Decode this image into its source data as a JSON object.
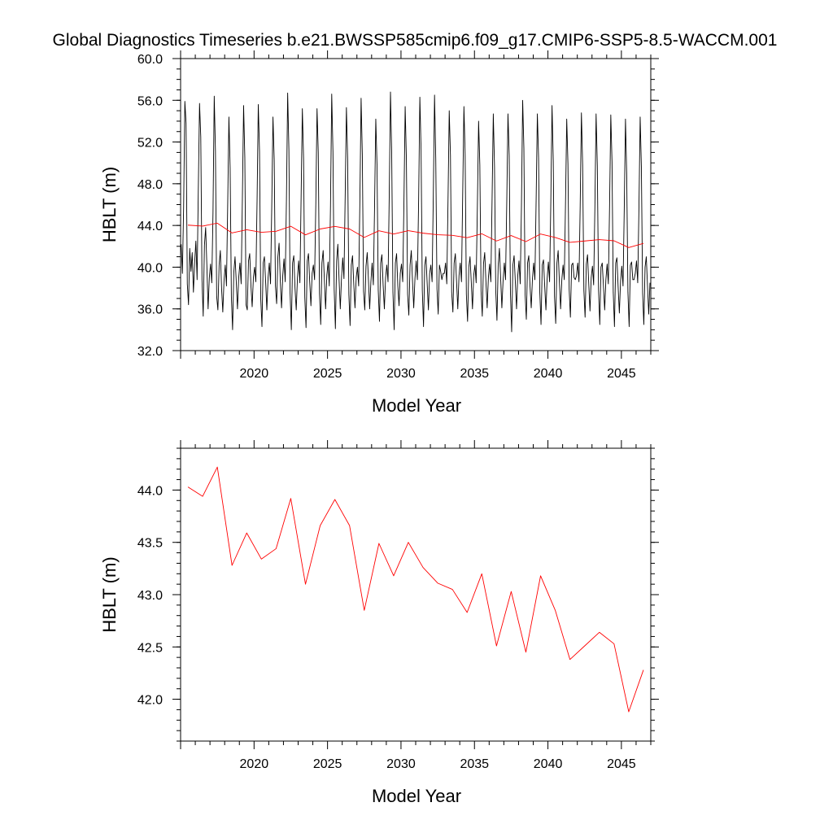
{
  "title": "Global Diagnostics Timeseries b.e21.BWSSP585cmip6.f09_g17.CMIP6-SSP5-8.5-WACCM.001",
  "chart_data": [
    {
      "type": "line",
      "xlabel": "Model Year",
      "ylabel": "HBLT (m)",
      "xlim": [
        2015,
        2047
      ],
      "ylim": [
        32,
        60
      ],
      "x_ticks": [
        "2020",
        "2025",
        "2030",
        "2035",
        "2040",
        "2045"
      ],
      "y_ticks": [
        "32.0",
        "36.0",
        "40.0",
        "44.0",
        "48.0",
        "52.0",
        "56.0",
        "60.0"
      ],
      "grid": false,
      "legend": "none",
      "series": [
        {
          "color": "#000000",
          "resolution": "monthly",
          "x_start": 2015.04,
          "x_step": 0.0833,
          "values": [
            42.2,
            39.4,
            45.8,
            55.9,
            53.8,
            38.4,
            36.4,
            41.8,
            39.6,
            41.4,
            37.6,
            40.4,
            42.5,
            38.8,
            47.5,
            55.7,
            52.5,
            38.8,
            35.3,
            42.1,
            43.8,
            40.1,
            36.0,
            39.0,
            40.3,
            38.5,
            45.2,
            56.4,
            51.1,
            37.2,
            35.9,
            40.2,
            41.6,
            38.0,
            35.7,
            38.7,
            40.2,
            38.2,
            46.0,
            54.4,
            49.5,
            37.2,
            34.0,
            39.5,
            41.0,
            38.6,
            36.0,
            39.0,
            40.4,
            38.4,
            46.5,
            55.5,
            50.5,
            36.4,
            35.9,
            40.6,
            41.3,
            38.2,
            36.2,
            39.0,
            40.0,
            38.6,
            46.3,
            55.6,
            51.1,
            37.0,
            34.3,
            40.4,
            41.0,
            38.6,
            35.9,
            39.0,
            40.4,
            38.4,
            45.8,
            54.4,
            50.3,
            38.2,
            36.5,
            41.0,
            42.3,
            38.6,
            36.1,
            39.2,
            40.8,
            38.6,
            46.5,
            56.7,
            51.3,
            37.5,
            34.0,
            40.4,
            41.1,
            38.0,
            35.9,
            39.0,
            40.6,
            38.5,
            46.8,
            55.2,
            50.4,
            37.1,
            34.2,
            40.6,
            41.3,
            38.6,
            36.3,
            39.4,
            40.2,
            38.8,
            46.1,
            55.2,
            51.0,
            37.5,
            34.5,
            40.4,
            41.6,
            38.8,
            36.0,
            39.2,
            40.5,
            38.2,
            45.9,
            56.6,
            51.1,
            37.9,
            34.1,
            40.6,
            42.2,
            38.8,
            36.0,
            39.0,
            40.9,
            38.9,
            46.9,
            55.3,
            50.4,
            37.4,
            34.4,
            40.2,
            41.1,
            38.4,
            36.1,
            39.0,
            40.0,
            38.2,
            46.4,
            56.2,
            50.8,
            37.7,
            35.9,
            40.1,
            41.4,
            38.8,
            36.0,
            38.6,
            40.4,
            38.3,
            45.8,
            54.2,
            49.8,
            37.8,
            34.8,
            40.4,
            41.2,
            38.3,
            36.0,
            39.0,
            40.2,
            38.6,
            47.0,
            56.8,
            50.9,
            37.6,
            34.0,
            40.4,
            41.3,
            38.2,
            36.3,
            39.4,
            40.3,
            38.6,
            46.2,
            55.4,
            50.3,
            37.4,
            35.4,
            40.2,
            41.6,
            38.7,
            36.1,
            38.9,
            40.6,
            38.8,
            46.4,
            56.3,
            51.2,
            37.8,
            34.3,
            40.2,
            41.0,
            38.4,
            35.9,
            39.4,
            40.2,
            38.6,
            46.9,
            56.5,
            50.4,
            37.9,
            35.5,
            40.2,
            39.6,
            38.8,
            39.4,
            39.4,
            40.4,
            38.4,
            46.3,
            55.0,
            50.7,
            37.6,
            35.7,
            40.4,
            41.3,
            38.6,
            36.0,
            39.2,
            40.4,
            38.6,
            46.9,
            55.4,
            50.8,
            37.4,
            34.8,
            40.0,
            41.0,
            38.6,
            36.0,
            39.2,
            40.2,
            38.5,
            45.9,
            54.0,
            49.8,
            37.7,
            35.3,
            40.3,
            41.4,
            38.6,
            36.1,
            39.0,
            40.3,
            38.6,
            46.4,
            54.7,
            49.6,
            37.8,
            34.9,
            40.2,
            41.8,
            39.0,
            36.1,
            38.7,
            40.4,
            38.8,
            46.2,
            54.7,
            50.7,
            37.6,
            33.8,
            40.2,
            41.1,
            38.6,
            36.0,
            39.2,
            40.6,
            38.4,
            45.8,
            56.0,
            51.4,
            37.4,
            35.0,
            40.4,
            41.1,
            38.2,
            36.1,
            38.9,
            40.4,
            38.8,
            46.4,
            54.7,
            50.5,
            37.6,
            34.5,
            40.2,
            40.7,
            38.2,
            35.9,
            38.9,
            40.5,
            38.6,
            46.3,
            55.5,
            50.2,
            37.2,
            34.6,
            40.4,
            41.6,
            38.6,
            36.0,
            38.8,
            40.2,
            38.8,
            46.1,
            54.2,
            49.9,
            37.9,
            35.2,
            40.2,
            40.4,
            39.0,
            38.8,
            39.2,
            40.4,
            38.6,
            45.9,
            54.8,
            49.8,
            37.8,
            35.2,
            40.3,
            41.2,
            38.4,
            35.8,
            39.0,
            40.1,
            38.3,
            45.7,
            54.7,
            49.7,
            37.8,
            34.5,
            40.0,
            40.4,
            38.2,
            35.9,
            38.8,
            40.3,
            38.4,
            45.8,
            54.6,
            50.1,
            37.6,
            34.3,
            40.4,
            40.9,
            38.1,
            35.6,
            38.7,
            40.1,
            38.2,
            45.6,
            54.2,
            48.9,
            37.6,
            34.3,
            40.2,
            40.5,
            38.8,
            38.8,
            39.4,
            40.6,
            38.5,
            45.7,
            54.4,
            49.6,
            37.5,
            34.5,
            40.0,
            41.0,
            38.2,
            35.5,
            38.5
          ]
        },
        {
          "color": "#ff0000",
          "resolution": "annual",
          "x": [
            2015.5,
            2016.5,
            2017.5,
            2018.5,
            2019.5,
            2020.5,
            2021.5,
            2022.5,
            2023.5,
            2024.5,
            2025.5,
            2026.5,
            2027.5,
            2028.5,
            2029.5,
            2030.5,
            2031.5,
            2032.5,
            2033.5,
            2034.5,
            2035.5,
            2036.5,
            2037.5,
            2038.5,
            2039.5,
            2040.5,
            2041.5,
            2042.5,
            2043.5,
            2044.5,
            2045.5,
            2046.5
          ],
          "values": [
            44.03,
            43.94,
            44.22,
            43.28,
            43.59,
            43.34,
            43.44,
            43.92,
            43.1,
            43.66,
            43.91,
            43.66,
            42.85,
            43.49,
            43.18,
            43.5,
            43.26,
            43.11,
            43.05,
            42.83,
            43.2,
            42.51,
            43.03,
            42.45,
            43.18,
            42.85,
            42.38,
            42.51,
            42.64,
            42.53,
            41.88,
            42.28
          ]
        }
      ]
    },
    {
      "type": "line",
      "xlabel": "Model Year",
      "ylabel": "HBLT (m)",
      "xlim": [
        2015,
        2047
      ],
      "ylim": [
        41.6,
        44.4
      ],
      "x_ticks": [
        "2020",
        "2025",
        "2030",
        "2035",
        "2040",
        "2045"
      ],
      "y_ticks": [
        "42.0",
        "42.5",
        "43.0",
        "43.5",
        "44.0"
      ],
      "grid": false,
      "legend": "none",
      "series": [
        {
          "color": "#ff0000",
          "resolution": "annual",
          "x": [
            2015.5,
            2016.5,
            2017.5,
            2018.5,
            2019.5,
            2020.5,
            2021.5,
            2022.5,
            2023.5,
            2024.5,
            2025.5,
            2026.5,
            2027.5,
            2028.5,
            2029.5,
            2030.5,
            2031.5,
            2032.5,
            2033.5,
            2034.5,
            2035.5,
            2036.5,
            2037.5,
            2038.5,
            2039.5,
            2040.5,
            2041.5,
            2042.5,
            2043.5,
            2044.5,
            2045.5,
            2046.5
          ],
          "values": [
            44.03,
            43.94,
            44.22,
            43.28,
            43.59,
            43.34,
            43.44,
            43.92,
            43.1,
            43.66,
            43.91,
            43.66,
            42.85,
            43.49,
            43.18,
            43.5,
            43.26,
            43.11,
            43.05,
            42.83,
            43.2,
            42.51,
            43.03,
            42.45,
            43.18,
            42.85,
            42.38,
            42.51,
            42.64,
            42.53,
            41.88,
            42.28
          ]
        }
      ]
    }
  ]
}
